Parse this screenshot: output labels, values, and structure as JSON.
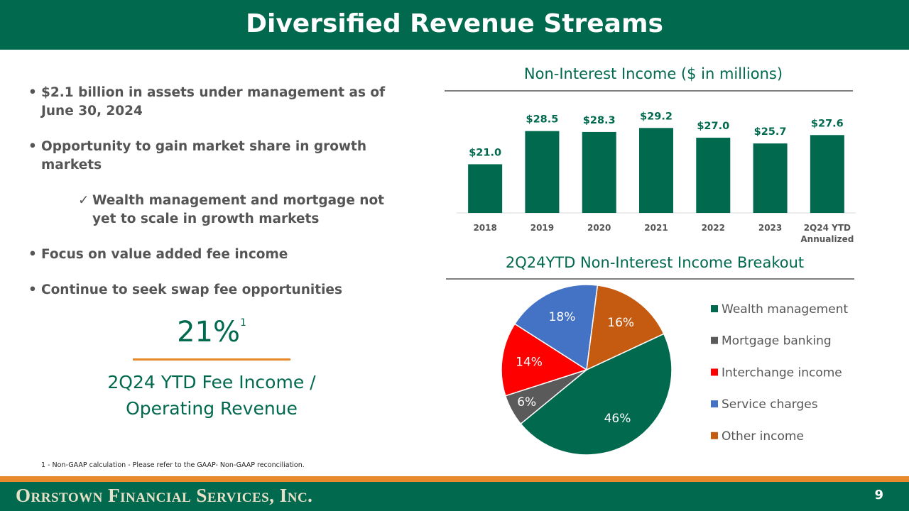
{
  "header": {
    "title": "Diversified Revenue Streams"
  },
  "bullets": [
    {
      "text": "$2.1 billion in assets under management as of June 30, 2024"
    },
    {
      "text": "Opportunity to gain market share in growth markets",
      "sub": [
        "Wealth management and mortgage not yet to scale in growth markets"
      ]
    },
    {
      "text": "Focus on value added fee income"
    },
    {
      "text": "Continue to seek swap fee opportunities"
    }
  ],
  "metric": {
    "value": "21%",
    "footnote_ref": "1",
    "label": "2Q24 YTD Fee Income / Operating Revenue"
  },
  "footnote": "1 - Non-GAAP calculation - Please refer to the GAAP- Non-GAAP reconciliation.",
  "footer": {
    "company": "Orrstown Financial Services, Inc.",
    "page": "9"
  },
  "chart_data": [
    {
      "type": "bar",
      "title": "Non-Interest Income ($ in millions)",
      "categories": [
        "2018",
        "2019",
        "2020",
        "2021",
        "2022",
        "2023",
        "2Q24 YTD Annualized"
      ],
      "values": [
        21.0,
        28.5,
        28.3,
        29.2,
        27.0,
        25.7,
        27.6
      ],
      "value_labels": [
        "$21.0",
        "$28.5",
        "$28.3",
        "$29.2",
        "$27.0",
        "$25.7",
        "$27.6"
      ],
      "color": "#00694e",
      "ylim": [
        10,
        40
      ]
    },
    {
      "type": "pie",
      "title": "2Q24YTD  Non-Interest Income Breakout",
      "categories": [
        "Wealth management",
        "Mortgage banking",
        "Interchange income",
        "Service charges",
        "Other income"
      ],
      "values": [
        46,
        6,
        14,
        18,
        16
      ],
      "value_labels": [
        "46%",
        "6%",
        "14%",
        "18%",
        "16%"
      ],
      "colors": [
        "#00694e",
        "#5a5a5a",
        "#ff0000",
        "#4472c4",
        "#c55a11"
      ],
      "legend": "right"
    }
  ]
}
